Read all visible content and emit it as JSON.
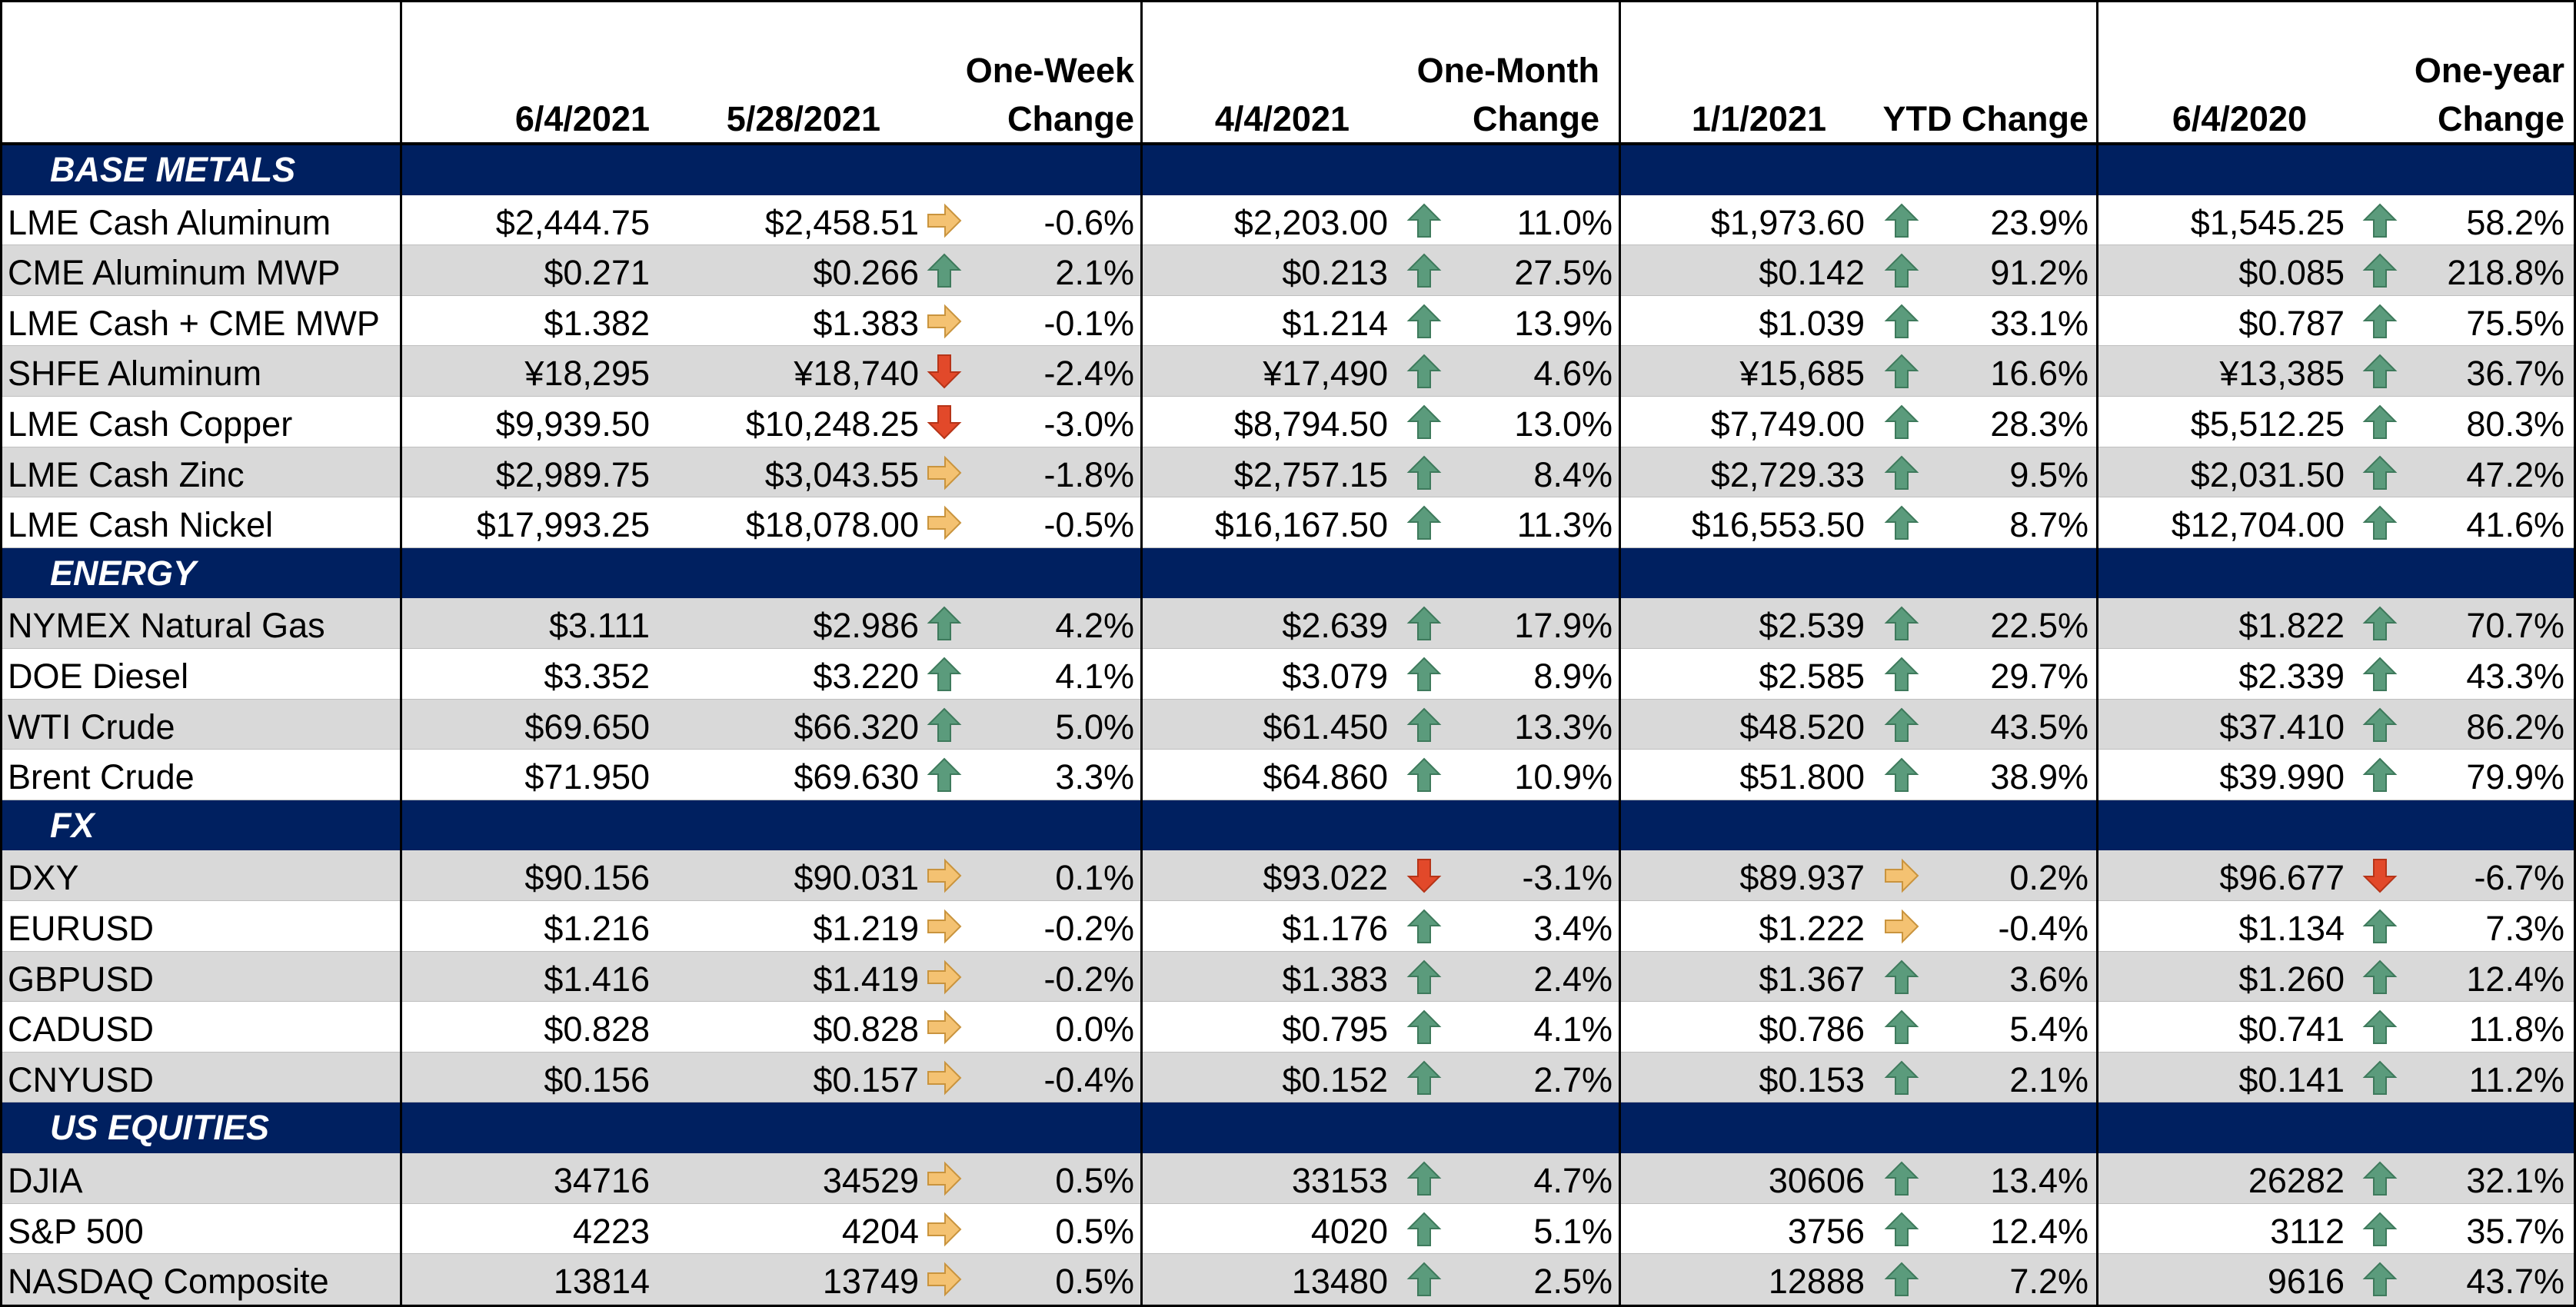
{
  "header": {
    "groups": [
      {
        "cols": [
          "6/4/2021",
          "5/28/2021"
        ],
        "change_label": [
          "One-Week",
          "Change"
        ]
      },
      {
        "cols": [
          "4/4/2021"
        ],
        "change_label": [
          "One-Month",
          "Change"
        ]
      },
      {
        "cols": [
          "1/1/2021"
        ],
        "change_label": [
          "YTD Change"
        ]
      },
      {
        "cols": [
          "6/4/2020"
        ],
        "change_label": [
          "One-year",
          "Change"
        ]
      }
    ]
  },
  "colors": {
    "section_bg": "#002060",
    "band_gray": "#d9d9d9",
    "arrow_up": "#5b9b7c",
    "arrow_right": "#f4c272",
    "arrow_down": "#e2492a"
  },
  "sections": [
    {
      "name": "BASE METALS",
      "rows": [
        {
          "label": "LME Cash Aluminum",
          "v1": "$2,444.75",
          "v2": "$2,458.51",
          "a1": "right",
          "c1": "-0.6%",
          "v3": "$2,203.00",
          "a2": "up",
          "c2": "11.0%",
          "v4": "$1,973.60",
          "a3": "up",
          "c3": "23.9%",
          "v5": "$1,545.25",
          "a4": "up",
          "c4": "58.2%"
        },
        {
          "label": "CME Aluminum MWP",
          "v1": "$0.271",
          "v2": "$0.266",
          "a1": "up",
          "c1": "2.1%",
          "v3": "$0.213",
          "a2": "up",
          "c2": "27.5%",
          "v4": "$0.142",
          "a3": "up",
          "c3": "91.2%",
          "v5": "$0.085",
          "a4": "up",
          "c4": "218.8%"
        },
        {
          "label": "LME Cash + CME MWP",
          "v1": "$1.382",
          "v2": "$1.383",
          "a1": "right",
          "c1": "-0.1%",
          "v3": "$1.214",
          "a2": "up",
          "c2": "13.9%",
          "v4": "$1.039",
          "a3": "up",
          "c3": "33.1%",
          "v5": "$0.787",
          "a4": "up",
          "c4": "75.5%"
        },
        {
          "label": "SHFE Aluminum",
          "v1": "¥18,295",
          "v2": "¥18,740",
          "a1": "down",
          "c1": "-2.4%",
          "v3": "¥17,490",
          "a2": "up",
          "c2": "4.6%",
          "v4": "¥15,685",
          "a3": "up",
          "c3": "16.6%",
          "v5": "¥13,385",
          "a4": "up",
          "c4": "36.7%"
        },
        {
          "label": "LME Cash Copper",
          "v1": "$9,939.50",
          "v2": "$10,248.25",
          "a1": "down",
          "c1": "-3.0%",
          "v3": "$8,794.50",
          "a2": "up",
          "c2": "13.0%",
          "v4": "$7,749.00",
          "a3": "up",
          "c3": "28.3%",
          "v5": "$5,512.25",
          "a4": "up",
          "c4": "80.3%"
        },
        {
          "label": "LME Cash Zinc",
          "v1": "$2,989.75",
          "v2": "$3,043.55",
          "a1": "right",
          "c1": "-1.8%",
          "v3": "$2,757.15",
          "a2": "up",
          "c2": "8.4%",
          "v4": "$2,729.33",
          "a3": "up",
          "c3": "9.5%",
          "v5": "$2,031.50",
          "a4": "up",
          "c4": "47.2%"
        },
        {
          "label": "LME Cash Nickel",
          "v1": "$17,993.25",
          "v2": "$18,078.00",
          "a1": "right",
          "c1": "-0.5%",
          "v3": "$16,167.50",
          "a2": "up",
          "c2": "11.3%",
          "v4": "$16,553.50",
          "a3": "up",
          "c3": "8.7%",
          "v5": "$12,704.00",
          "a4": "up",
          "c4": "41.6%"
        }
      ]
    },
    {
      "name": "ENERGY",
      "rows": [
        {
          "label": "NYMEX Natural Gas",
          "v1": "$3.111",
          "v2": "$2.986",
          "a1": "up",
          "c1": "4.2%",
          "v3": "$2.639",
          "a2": "up",
          "c2": "17.9%",
          "v4": "$2.539",
          "a3": "up",
          "c3": "22.5%",
          "v5": "$1.822",
          "a4": "up",
          "c4": "70.7%"
        },
        {
          "label": "DOE Diesel",
          "v1": "$3.352",
          "v2": "$3.220",
          "a1": "up",
          "c1": "4.1%",
          "v3": "$3.079",
          "a2": "up",
          "c2": "8.9%",
          "v4": "$2.585",
          "a3": "up",
          "c3": "29.7%",
          "v5": "$2.339",
          "a4": "up",
          "c4": "43.3%"
        },
        {
          "label": "WTI Crude",
          "v1": "$69.650",
          "v2": "$66.320",
          "a1": "up",
          "c1": "5.0%",
          "v3": "$61.450",
          "a2": "up",
          "c2": "13.3%",
          "v4": "$48.520",
          "a3": "up",
          "c3": "43.5%",
          "v5": "$37.410",
          "a4": "up",
          "c4": "86.2%"
        },
        {
          "label": "Brent Crude",
          "v1": "$71.950",
          "v2": "$69.630",
          "a1": "up",
          "c1": "3.3%",
          "v3": "$64.860",
          "a2": "up",
          "c2": "10.9%",
          "v4": "$51.800",
          "a3": "up",
          "c3": "38.9%",
          "v5": "$39.990",
          "a4": "up",
          "c4": "79.9%"
        }
      ]
    },
    {
      "name": "FX",
      "rows": [
        {
          "label": "DXY",
          "v1": "$90.156",
          "v2": "$90.031",
          "a1": "right",
          "c1": "0.1%",
          "v3": "$93.022",
          "a2": "down",
          "c2": "-3.1%",
          "v4": "$89.937",
          "a3": "right",
          "c3": "0.2%",
          "v5": "$96.677",
          "a4": "down",
          "c4": "-6.7%"
        },
        {
          "label": "EURUSD",
          "v1": "$1.216",
          "v2": "$1.219",
          "a1": "right",
          "c1": "-0.2%",
          "v3": "$1.176",
          "a2": "up",
          "c2": "3.4%",
          "v4": "$1.222",
          "a3": "right",
          "c3": "-0.4%",
          "v5": "$1.134",
          "a4": "up",
          "c4": "7.3%"
        },
        {
          "label": "GBPUSD",
          "v1": "$1.416",
          "v2": "$1.419",
          "a1": "right",
          "c1": "-0.2%",
          "v3": "$1.383",
          "a2": "up",
          "c2": "2.4%",
          "v4": "$1.367",
          "a3": "up",
          "c3": "3.6%",
          "v5": "$1.260",
          "a4": "up",
          "c4": "12.4%"
        },
        {
          "label": "CADUSD",
          "v1": "$0.828",
          "v2": "$0.828",
          "a1": "right",
          "c1": "0.0%",
          "v3": "$0.795",
          "a2": "up",
          "c2": "4.1%",
          "v4": "$0.786",
          "a3": "up",
          "c3": "5.4%",
          "v5": "$0.741",
          "a4": "up",
          "c4": "11.8%"
        },
        {
          "label": "CNYUSD",
          "v1": "$0.156",
          "v2": "$0.157",
          "a1": "right",
          "c1": "-0.4%",
          "v3": "$0.152",
          "a2": "up",
          "c2": "2.7%",
          "v4": "$0.153",
          "a3": "up",
          "c3": "2.1%",
          "v5": "$0.141",
          "a4": "up",
          "c4": "11.2%"
        }
      ]
    },
    {
      "name": "US EQUITIES",
      "rows": [
        {
          "label": "DJIA",
          "v1": "34716",
          "v2": "34529",
          "a1": "right",
          "c1": "0.5%",
          "v3": "33153",
          "a2": "up",
          "c2": "4.7%",
          "v4": "30606",
          "a3": "up",
          "c3": "13.4%",
          "v5": "26282",
          "a4": "up",
          "c4": "32.1%"
        },
        {
          "label": "S&P 500",
          "v1": "4223",
          "v2": "4204",
          "a1": "right",
          "c1": "0.5%",
          "v3": "4020",
          "a2": "up",
          "c2": "5.1%",
          "v4": "3756",
          "a3": "up",
          "c3": "12.4%",
          "v5": "3112",
          "a4": "up",
          "c4": "35.7%"
        },
        {
          "label": "NASDAQ Composite",
          "v1": "13814",
          "v2": "13749",
          "a1": "right",
          "c1": "0.5%",
          "v3": "13480",
          "a2": "up",
          "c2": "2.5%",
          "v4": "12888",
          "a3": "up",
          "c3": "7.2%",
          "v5": "9616",
          "a4": "up",
          "c4": "43.7%"
        }
      ]
    }
  ]
}
